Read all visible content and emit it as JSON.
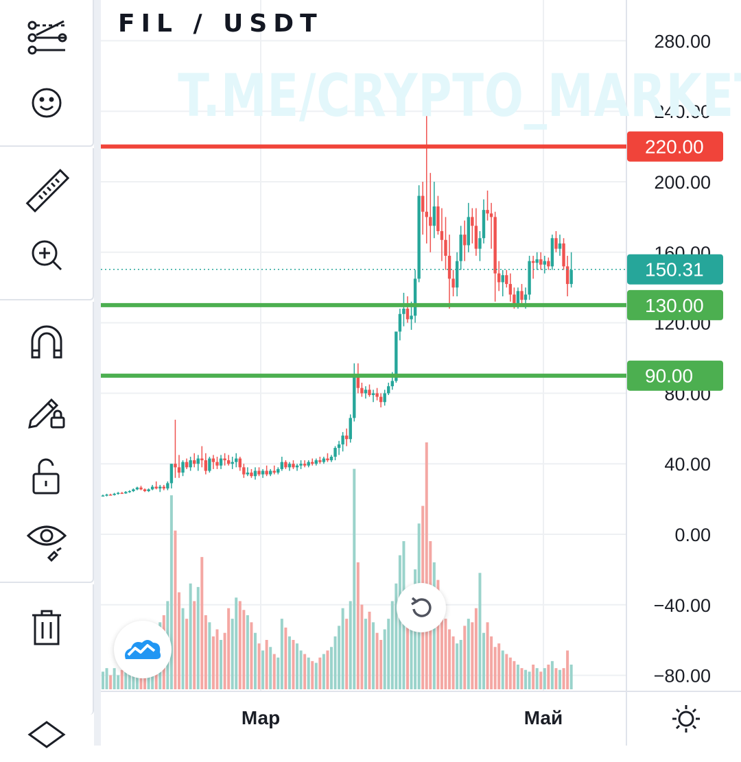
{
  "symbol": "FIL / USDT",
  "watermark": "T.ME/CRYPTO_MARKET",
  "toolbar": {
    "tools": [
      {
        "name": "trend-lines-icon"
      },
      {
        "name": "smiley-icon"
      },
      {
        "name": "ruler-icon"
      },
      {
        "name": "zoom-in-icon"
      },
      {
        "name": "magnet-icon"
      },
      {
        "name": "lock-drawings-icon"
      },
      {
        "name": "unlock-icon"
      },
      {
        "name": "eye-icon"
      },
      {
        "name": "trash-icon"
      },
      {
        "name": "layers-icon"
      }
    ]
  },
  "colors": {
    "up": "#26a69a",
    "down": "#ef5350",
    "up_volume": "#9ad3cb",
    "down_volume": "#f4a7a3",
    "resistance": "#f0443a",
    "support": "#4caf50",
    "price_tag": "#26a69a",
    "grid": "#eef0f3"
  },
  "chart_data": {
    "type": "candlestick",
    "pair": "FIL / USDT",
    "y_axis": {
      "ticks": [
        "280.00",
        "240.00",
        "200.00",
        "160.00",
        "120.00",
        "80.00",
        "40.00",
        "0.00",
        "−40.00",
        "−80.00"
      ],
      "tick_values": [
        280,
        240,
        200,
        160,
        120,
        80,
        40,
        0,
        -40,
        -80
      ]
    },
    "x_axis": {
      "labels": [
        "Мар",
        "Май"
      ]
    },
    "horizontal_lines": [
      {
        "value": 220,
        "label": "220.00",
        "color": "#f0443a",
        "kind": "resistance"
      },
      {
        "value": 130,
        "label": "130.00",
        "color": "#4caf50",
        "kind": "support"
      },
      {
        "value": 90,
        "label": "90.00",
        "color": "#4caf50",
        "kind": "support"
      }
    ],
    "last_price": {
      "value": 150.31,
      "label": "150.31"
    },
    "candles_ohlc": [
      [
        22,
        22.5,
        21.5,
        22
      ],
      [
        22,
        23,
        21.5,
        22.5
      ],
      [
        22.5,
        23,
        22,
        22.3
      ],
      [
        22.3,
        23.5,
        22,
        23
      ],
      [
        23,
        24,
        22.5,
        23.5
      ],
      [
        23.5,
        24,
        23,
        23.2
      ],
      [
        23.2,
        24.5,
        23,
        24
      ],
      [
        24,
        25,
        23.5,
        24.5
      ],
      [
        24.5,
        26,
        24,
        25.5
      ],
      [
        25.5,
        27,
        25,
        26.5
      ],
      [
        26.5,
        27.5,
        25,
        25.5
      ],
      [
        25.5,
        26,
        24,
        24.5
      ],
      [
        24.5,
        26,
        24,
        25.5
      ],
      [
        25.5,
        28,
        25,
        27
      ],
      [
        27,
        30,
        25.5,
        26
      ],
      [
        26,
        28,
        24,
        27
      ],
      [
        27,
        28,
        25,
        26
      ],
      [
        26,
        30,
        25,
        29
      ],
      [
        29,
        40,
        26,
        40
      ],
      [
        40,
        65,
        32,
        38
      ],
      [
        38,
        45,
        32,
        35
      ],
      [
        35,
        42,
        33,
        41
      ],
      [
        41,
        43,
        37,
        38
      ],
      [
        38,
        44,
        36,
        42
      ],
      [
        42,
        46,
        38,
        40
      ],
      [
        40,
        45,
        36,
        43
      ],
      [
        43,
        50,
        38,
        42
      ],
      [
        42,
        46,
        34,
        36
      ],
      [
        36,
        44,
        35,
        43
      ],
      [
        43,
        45,
        37,
        41
      ],
      [
        41,
        44,
        37,
        39
      ],
      [
        39,
        45,
        37,
        43
      ],
      [
        43,
        46,
        39,
        42
      ],
      [
        42,
        45,
        39,
        40
      ],
      [
        40,
        44,
        37,
        41
      ],
      [
        41,
        46,
        38,
        43
      ],
      [
        43,
        44,
        36,
        38
      ],
      [
        38,
        40,
        32,
        34
      ],
      [
        34,
        38,
        33,
        35
      ],
      [
        35,
        37,
        32,
        33
      ],
      [
        33,
        38,
        31,
        36
      ],
      [
        36,
        38,
        33,
        34
      ],
      [
        34,
        37,
        32,
        36
      ],
      [
        36,
        39,
        33,
        34
      ],
      [
        34,
        37,
        33,
        36
      ],
      [
        36,
        39,
        34,
        35
      ],
      [
        35,
        38,
        34,
        37
      ],
      [
        37,
        44,
        36,
        41
      ],
      [
        41,
        42,
        37,
        38
      ],
      [
        38,
        41,
        36,
        40
      ],
      [
        40,
        42,
        37,
        38
      ],
      [
        38,
        40,
        36,
        39
      ],
      [
        39,
        42,
        37,
        40
      ],
      [
        40,
        42,
        38,
        39
      ],
      [
        39,
        42,
        38,
        41
      ],
      [
        41,
        43,
        39,
        40
      ],
      [
        40,
        43,
        39,
        42
      ],
      [
        42,
        44,
        40,
        41
      ],
      [
        41,
        44,
        40,
        43
      ],
      [
        43,
        46,
        41,
        42
      ],
      [
        42,
        45,
        41,
        44
      ],
      [
        44,
        50,
        42,
        49
      ],
      [
        49,
        53,
        45,
        51
      ],
      [
        51,
        58,
        47,
        56
      ],
      [
        56,
        60,
        50,
        54
      ],
      [
        54,
        68,
        52,
        66
      ],
      [
        66,
        97,
        64,
        90
      ],
      [
        90,
        97,
        80,
        83
      ],
      [
        83,
        86,
        78,
        80
      ],
      [
        80,
        84,
        77,
        82
      ],
      [
        82,
        85,
        78,
        79
      ],
      [
        79,
        82,
        75,
        80
      ],
      [
        80,
        83,
        76,
        78
      ],
      [
        78,
        80,
        72,
        75
      ],
      [
        75,
        82,
        73,
        80
      ],
      [
        80,
        86,
        79,
        84
      ],
      [
        84,
        92,
        82,
        87
      ],
      [
        87,
        115,
        86,
        115
      ],
      [
        115,
        128,
        110,
        125
      ],
      [
        125,
        137,
        118,
        128
      ],
      [
        128,
        135,
        120,
        122
      ],
      [
        122,
        132,
        116,
        124
      ],
      [
        124,
        150,
        120,
        145
      ],
      [
        145,
        198,
        143,
        192
      ],
      [
        192,
        200,
        170,
        183
      ],
      [
        183,
        238,
        165,
        180
      ],
      [
        180,
        205,
        160,
        175
      ],
      [
        175,
        200,
        168,
        186
      ],
      [
        186,
        192,
        170,
        172
      ],
      [
        172,
        185,
        155,
        167
      ],
      [
        167,
        180,
        150,
        158
      ],
      [
        158,
        170,
        128,
        145
      ],
      [
        145,
        150,
        135,
        140
      ],
      [
        140,
        160,
        135,
        155
      ],
      [
        155,
        175,
        150,
        170
      ],
      [
        170,
        178,
        155,
        164
      ],
      [
        164,
        188,
        160,
        180
      ],
      [
        180,
        185,
        165,
        175
      ],
      [
        175,
        185,
        158,
        162
      ],
      [
        162,
        172,
        155,
        168
      ],
      [
        168,
        190,
        165,
        184
      ],
      [
        184,
        195,
        178,
        182
      ],
      [
        182,
        188,
        162,
        180
      ],
      [
        180,
        183,
        132,
        148
      ],
      [
        148,
        155,
        138,
        143
      ],
      [
        143,
        150,
        135,
        147
      ],
      [
        147,
        150,
        140,
        142
      ],
      [
        142,
        148,
        132,
        136
      ],
      [
        136,
        140,
        128,
        131
      ],
      [
        131,
        140,
        128,
        138
      ],
      [
        138,
        142,
        130,
        133
      ],
      [
        133,
        140,
        128,
        136
      ],
      [
        136,
        158,
        133,
        155
      ],
      [
        155,
        158,
        145,
        154
      ],
      [
        154,
        160,
        150,
        156
      ],
      [
        156,
        160,
        150,
        153
      ],
      [
        153,
        158,
        148,
        155
      ],
      [
        155,
        157,
        150,
        152
      ],
      [
        152,
        170,
        150,
        168
      ],
      [
        168,
        172,
        160,
        162
      ],
      [
        162,
        170,
        158,
        165
      ],
      [
        165,
        168,
        150,
        152
      ],
      [
        152,
        158,
        135,
        142
      ],
      [
        142,
        160,
        140,
        150
      ]
    ],
    "volume": [
      10,
      12,
      8,
      12,
      8,
      11,
      10,
      14,
      12,
      16,
      20,
      14,
      10,
      28,
      24,
      38,
      42,
      50,
      110,
      90,
      55,
      46,
      40,
      60,
      50,
      58,
      75,
      42,
      38,
      30,
      34,
      28,
      32,
      46,
      40,
      52,
      50,
      45,
      42,
      38,
      32,
      26,
      22,
      28,
      24,
      20,
      18,
      40,
      35,
      30,
      28,
      26,
      22,
      20,
      18,
      16,
      15,
      18,
      20,
      22,
      24,
      30,
      36,
      46,
      40,
      50,
      125,
      72,
      48,
      40,
      44,
      38,
      32,
      28,
      34,
      40,
      50,
      60,
      76,
      84,
      54,
      58,
      68,
      94,
      104,
      140,
      84,
      72,
      62,
      48,
      40,
      34,
      30,
      26,
      28,
      36,
      40,
      38,
      46,
      66,
      32,
      38,
      30,
      24,
      26,
      22,
      20,
      18,
      16,
      14,
      12,
      11,
      10,
      14,
      12,
      10,
      12,
      14,
      16,
      12,
      11,
      12,
      22,
      14
    ]
  }
}
